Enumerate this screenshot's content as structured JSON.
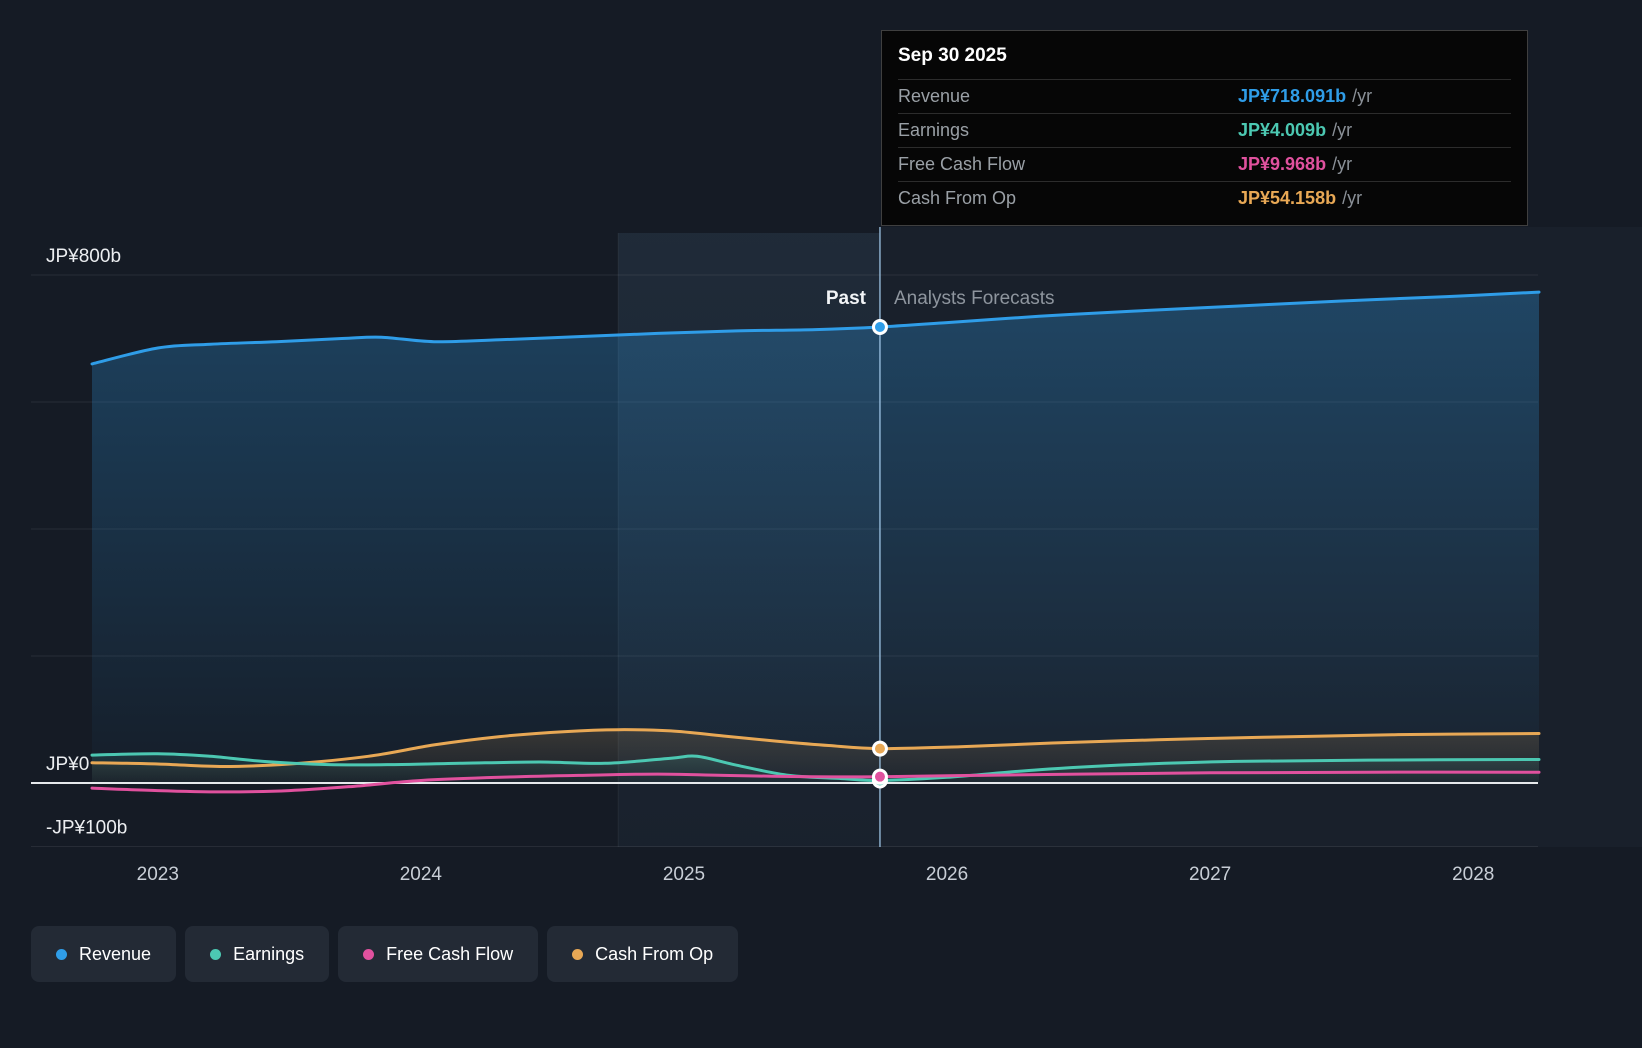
{
  "tooltip": {
    "date": "Sep 30 2025",
    "rows": [
      {
        "label": "Revenue",
        "value": "JP¥718.091b",
        "suffix": "/yr",
        "color": "#2f9de8"
      },
      {
        "label": "Earnings",
        "value": "JP¥4.009b",
        "suffix": "/yr",
        "color": "#4cc8b2"
      },
      {
        "label": "Free Cash Flow",
        "value": "JP¥9.968b",
        "suffix": "/yr",
        "color": "#e0519e"
      },
      {
        "label": "Cash From Op",
        "value": "JP¥54.158b",
        "suffix": "/yr",
        "color": "#e8a855"
      }
    ]
  },
  "zones": {
    "past": "Past",
    "forecast": "Analysts Forecasts"
  },
  "legend": [
    {
      "label": "Revenue",
      "color": "#2f9de8"
    },
    {
      "label": "Earnings",
      "color": "#4cc8b2"
    },
    {
      "label": "Free Cash Flow",
      "color": "#e0519e"
    },
    {
      "label": "Cash From Op",
      "color": "#e8a855"
    }
  ],
  "chart_data": {
    "type": "line",
    "unit": "JP¥ billions per year",
    "xlim": [
      2022.75,
      2028.25
    ],
    "ylim": [
      -100,
      800
    ],
    "divider_x": 2025.745,
    "divider_date": "Sep 30 2025",
    "highlight_band": [
      2024.75,
      2025.745
    ],
    "grid_values": [
      800,
      600,
      400,
      200,
      -100
    ],
    "y_ticks": [
      {
        "value": 800,
        "label": "JP¥800b"
      },
      {
        "value": 0,
        "label": "JP¥0"
      },
      {
        "value": -100,
        "label": "-JP¥100b"
      }
    ],
    "x_ticks": [
      {
        "value": 2023,
        "label": "2023"
      },
      {
        "value": 2024,
        "label": "2024"
      },
      {
        "value": 2025,
        "label": "2025"
      },
      {
        "value": 2026,
        "label": "2026"
      },
      {
        "value": 2027,
        "label": "2027"
      },
      {
        "value": 2028,
        "label": "2028"
      }
    ],
    "series": [
      {
        "name": "Revenue",
        "color": "#2f9de8",
        "fill_opacity": 0.3,
        "marker_value": 718.091,
        "points": [
          [
            2022.75,
            660
          ],
          [
            2023.0,
            685
          ],
          [
            2023.2,
            691
          ],
          [
            2023.45,
            695
          ],
          [
            2023.7,
            700
          ],
          [
            2023.85,
            702
          ],
          [
            2024.05,
            695
          ],
          [
            2024.3,
            698
          ],
          [
            2024.6,
            703
          ],
          [
            2024.9,
            708
          ],
          [
            2025.2,
            712
          ],
          [
            2025.5,
            714
          ],
          [
            2025.745,
            718.091
          ],
          [
            2026.0,
            725
          ],
          [
            2026.35,
            735
          ],
          [
            2026.7,
            743
          ],
          [
            2027.1,
            751
          ],
          [
            2027.5,
            759
          ],
          [
            2027.9,
            766
          ],
          [
            2028.25,
            773
          ]
        ]
      },
      {
        "name": "Cash From Op",
        "color": "#e8a855",
        "fill_opacity": 0.16,
        "marker_value": 54.158,
        "points": [
          [
            2022.75,
            32
          ],
          [
            2023.0,
            30
          ],
          [
            2023.25,
            26
          ],
          [
            2023.5,
            30
          ],
          [
            2023.8,
            42
          ],
          [
            2024.05,
            60
          ],
          [
            2024.3,
            73
          ],
          [
            2024.55,
            81
          ],
          [
            2024.75,
            84
          ],
          [
            2024.95,
            82
          ],
          [
            2025.15,
            74
          ],
          [
            2025.35,
            66
          ],
          [
            2025.55,
            59
          ],
          [
            2025.745,
            54.158
          ],
          [
            2026.05,
            57
          ],
          [
            2026.4,
            63
          ],
          [
            2026.8,
            68
          ],
          [
            2027.2,
            72
          ],
          [
            2027.7,
            76
          ],
          [
            2028.25,
            78
          ]
        ]
      },
      {
        "name": "Earnings",
        "color": "#4cc8b2",
        "fill_opacity": 0.14,
        "marker_value": 4.009,
        "points": [
          [
            2022.75,
            44
          ],
          [
            2023.0,
            46
          ],
          [
            2023.2,
            42
          ],
          [
            2023.4,
            34
          ],
          [
            2023.65,
            29
          ],
          [
            2023.9,
            29
          ],
          [
            2024.15,
            31
          ],
          [
            2024.45,
            33
          ],
          [
            2024.7,
            31
          ],
          [
            2024.95,
            39
          ],
          [
            2025.05,
            42
          ],
          [
            2025.2,
            28
          ],
          [
            2025.4,
            12
          ],
          [
            2025.6,
            7
          ],
          [
            2025.745,
            4.009
          ],
          [
            2026.0,
            9
          ],
          [
            2026.35,
            21
          ],
          [
            2026.7,
            29
          ],
          [
            2027.1,
            34
          ],
          [
            2027.6,
            36
          ],
          [
            2028.25,
            37
          ]
        ]
      },
      {
        "name": "Free Cash Flow",
        "color": "#e0519e",
        "fill_opacity": 0,
        "marker_value": 9.968,
        "points": [
          [
            2022.75,
            -8
          ],
          [
            2023.0,
            -12
          ],
          [
            2023.25,
            -14
          ],
          [
            2023.5,
            -12
          ],
          [
            2023.75,
            -5
          ],
          [
            2024.0,
            4
          ],
          [
            2024.3,
            9
          ],
          [
            2024.6,
            12
          ],
          [
            2024.9,
            14
          ],
          [
            2025.15,
            12
          ],
          [
            2025.45,
            10
          ],
          [
            2025.745,
            9.968
          ],
          [
            2026.1,
            12
          ],
          [
            2026.5,
            14
          ],
          [
            2027.0,
            16
          ],
          [
            2027.6,
            17
          ],
          [
            2028.25,
            17
          ]
        ]
      }
    ]
  }
}
